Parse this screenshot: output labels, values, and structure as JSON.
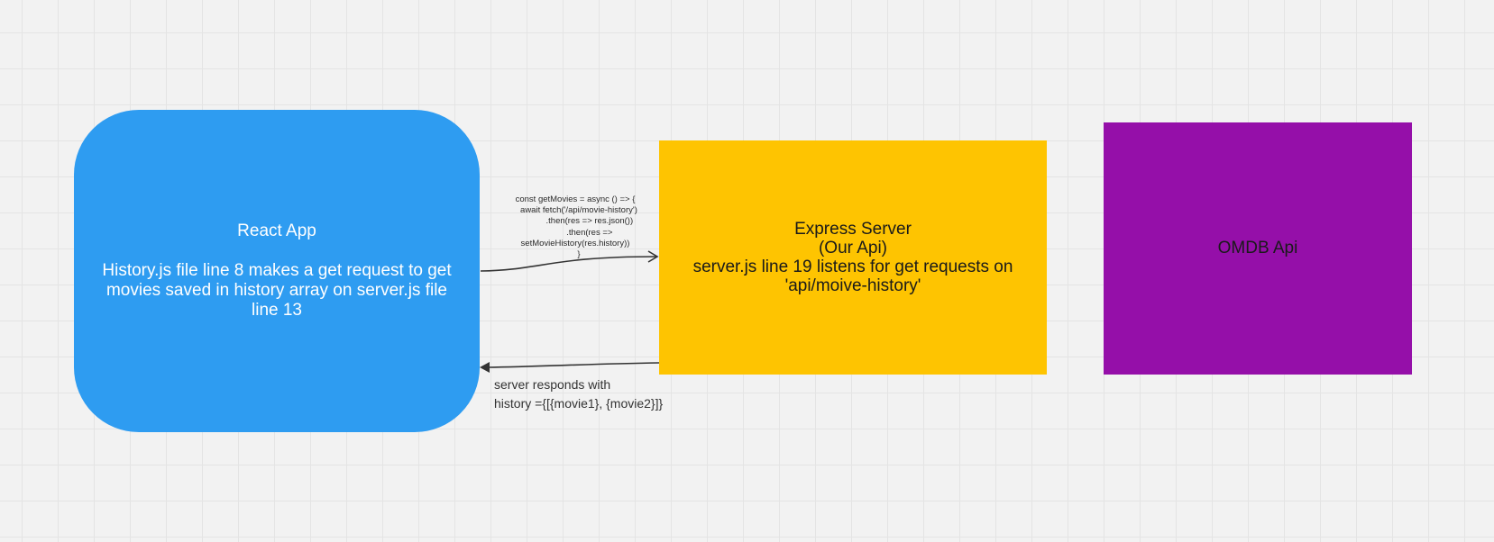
{
  "nodes": {
    "react_app": {
      "title": "React App",
      "body": "History.js file line 8 makes a get request to get movies saved in history array on server.js file line 13",
      "color": "#2e9cf1"
    },
    "express_server": {
      "title": "Express Server",
      "subtitle": "(Our Api)",
      "body": "server.js line 19 listens for get requests on 'api/moive-history'",
      "color": "#fec401"
    },
    "omdb_api": {
      "title": "OMDB Api",
      "color": "#950fa9"
    }
  },
  "edges": {
    "request": {
      "code": "const getMovies = async () => {\n   await fetch('/api/movie-history')\n            .then(res => res.json())\n            .then(res =>\nsetMovieHistory(res.history))\n   }"
    },
    "response": {
      "line1": "server responds with",
      "line2": "history ={[{movie1}, {movie2}]}"
    }
  }
}
